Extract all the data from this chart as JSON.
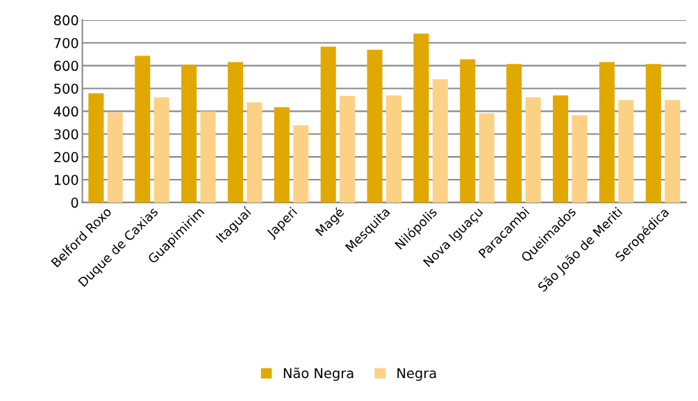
{
  "chart_data": {
    "type": "bar",
    "categories": [
      "Belford Roxo",
      "Duque de Caxias",
      "Guapimirim",
      "Itaguaí",
      "Japeri",
      "Magé",
      "Mesquita",
      "Nilópolis",
      "Nova Iguaçu",
      "Paracambi",
      "Queimados",
      "São João de Meriti",
      "Seropédica"
    ],
    "series": [
      {
        "name": "Não Negra",
        "color": "#e0a800",
        "values": [
          479,
          643,
          604,
          616,
          418,
          683,
          670,
          740,
          628,
          607,
          470,
          616,
          607
        ]
      },
      {
        "name": "Negra",
        "color": "#fdd185",
        "values": [
          394,
          461,
          400,
          439,
          339,
          467,
          470,
          540,
          391,
          461,
          382,
          449,
          449
        ]
      }
    ],
    "ylim": [
      0,
      800
    ],
    "yticks": [
      0,
      100,
      200,
      300,
      400,
      500,
      600,
      700,
      800
    ],
    "grid": "y",
    "legend": "bottom"
  }
}
